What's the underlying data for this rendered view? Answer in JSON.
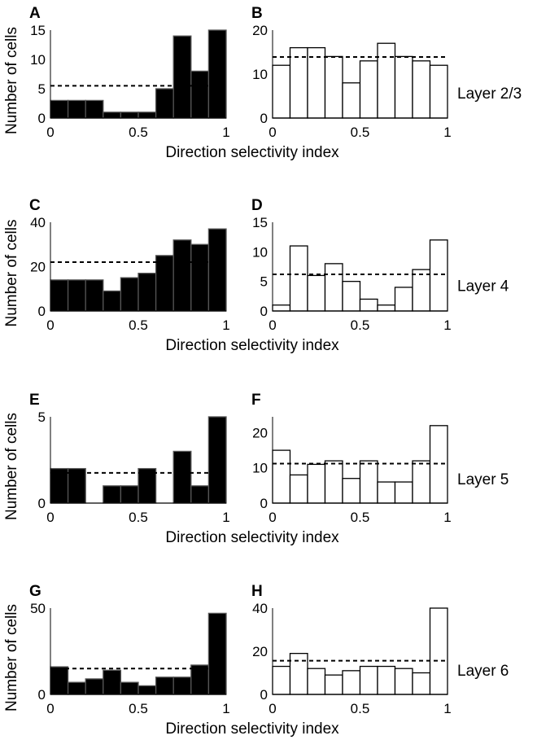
{
  "chart_data": [
    {
      "panel": "A",
      "type": "bar",
      "fill": "#000000",
      "xlabel": "Direction selectivity index",
      "ylabel": "Number of cells",
      "xlim": [
        0,
        1
      ],
      "ylim": [
        0,
        15
      ],
      "xticks": [
        "0",
        "0.5",
        "1"
      ],
      "yticks": [
        0,
        5,
        10,
        15
      ],
      "bin_edges": [
        0,
        0.1,
        0.2,
        0.3,
        0.4,
        0.5,
        0.6,
        0.7,
        0.8,
        0.9,
        1
      ],
      "values": [
        3,
        3,
        3,
        1,
        1,
        1,
        5,
        14,
        8,
        15
      ],
      "mean_line": 5.5,
      "side_label": ""
    },
    {
      "panel": "B",
      "type": "bar",
      "fill": "#ffffff",
      "xlabel": "",
      "ylabel": "",
      "xlim": [
        0,
        1
      ],
      "ylim": [
        0,
        20
      ],
      "xticks": [
        "0",
        "0.5",
        "1"
      ],
      "yticks": [
        0,
        10,
        20
      ],
      "bin_edges": [
        0,
        0.1,
        0.2,
        0.3,
        0.4,
        0.5,
        0.6,
        0.7,
        0.8,
        0.9,
        1
      ],
      "values": [
        12,
        16,
        16,
        14,
        8,
        13,
        17,
        14,
        13,
        12
      ],
      "mean_line": 13.9,
      "side_label": "Layer 2/3"
    },
    {
      "panel": "C",
      "type": "bar",
      "fill": "#000000",
      "xlabel": "Direction selectivity index",
      "ylabel": "Number of cells",
      "xlim": [
        0,
        1
      ],
      "ylim": [
        0,
        40
      ],
      "xticks": [
        "0",
        "0.5",
        "1"
      ],
      "yticks": [
        0,
        20,
        40
      ],
      "bin_edges": [
        0,
        0.1,
        0.2,
        0.3,
        0.4,
        0.5,
        0.6,
        0.7,
        0.8,
        0.9,
        1
      ],
      "values": [
        14,
        14,
        14,
        9,
        15,
        17,
        25,
        32,
        30,
        37
      ],
      "mean_line": 22,
      "side_label": ""
    },
    {
      "panel": "D",
      "type": "bar",
      "fill": "#ffffff",
      "xlabel": "",
      "ylabel": "",
      "xlim": [
        0,
        1
      ],
      "ylim": [
        0,
        15
      ],
      "xticks": [
        "0",
        "0.5",
        "1"
      ],
      "yticks": [
        0,
        5,
        10,
        15
      ],
      "bin_edges": [
        0,
        0.1,
        0.2,
        0.3,
        0.4,
        0.5,
        0.6,
        0.7,
        0.8,
        0.9,
        1
      ],
      "values": [
        1,
        11,
        6,
        8,
        5,
        2,
        1,
        4,
        7,
        12
      ],
      "mean_line": 6.2,
      "side_label": "Layer 4"
    },
    {
      "panel": "E",
      "type": "bar",
      "fill": "#000000",
      "xlabel": "Direction selectivity index",
      "ylabel": "Number of cells",
      "xlim": [
        0,
        1
      ],
      "ylim": [
        0,
        5
      ],
      "xticks": [
        "0",
        "0.5",
        "1"
      ],
      "yticks": [
        0,
        5
      ],
      "bin_edges": [
        0,
        0.1,
        0.2,
        0.3,
        0.4,
        0.5,
        0.6,
        0.7,
        0.8,
        0.9,
        1
      ],
      "values": [
        2,
        2,
        0,
        1,
        1,
        2,
        0,
        3,
        1,
        5
      ],
      "mean_line": 1.75,
      "side_label": ""
    },
    {
      "panel": "F",
      "type": "bar",
      "fill": "#ffffff",
      "xlabel": "",
      "ylabel": "",
      "xlim": [
        0,
        1
      ],
      "ylim": [
        0,
        24.5
      ],
      "xticks": [
        "0",
        "0.5",
        "1"
      ],
      "yticks": [
        0,
        10,
        20
      ],
      "bin_edges": [
        0,
        0.1,
        0.2,
        0.3,
        0.4,
        0.5,
        0.6,
        0.7,
        0.8,
        0.9,
        1
      ],
      "values": [
        15,
        8,
        11,
        12,
        7,
        12,
        6,
        6,
        12,
        22
      ],
      "mean_line": 11.2,
      "side_label": "Layer 5"
    },
    {
      "panel": "G",
      "type": "bar",
      "fill": "#000000",
      "xlabel": "Direction selectivity index",
      "ylabel": "Number of cells",
      "xlim": [
        0,
        1
      ],
      "ylim": [
        0,
        50
      ],
      "xticks": [
        "0",
        "0.5",
        "1"
      ],
      "yticks": [
        0,
        50
      ],
      "bin_edges": [
        0,
        0.1,
        0.2,
        0.3,
        0.4,
        0.5,
        0.6,
        0.7,
        0.8,
        0.9,
        1
      ],
      "values": [
        16,
        7,
        9,
        14,
        7,
        5,
        10,
        10,
        17,
        47
      ],
      "mean_line": 15,
      "side_label": ""
    },
    {
      "panel": "H",
      "type": "bar",
      "fill": "#ffffff",
      "xlabel": "",
      "ylabel": "",
      "xlim": [
        0,
        1
      ],
      "ylim": [
        0,
        40
      ],
      "xticks": [
        "0",
        "0.5",
        "1"
      ],
      "yticks": [
        0,
        20,
        40
      ],
      "bin_edges": [
        0,
        0.1,
        0.2,
        0.3,
        0.4,
        0.5,
        0.6,
        0.7,
        0.8,
        0.9,
        1
      ],
      "values": [
        13,
        19,
        12,
        9,
        11,
        13,
        13,
        12,
        10,
        40
      ],
      "mean_line": 15.6,
      "side_label": "Layer 6"
    }
  ]
}
